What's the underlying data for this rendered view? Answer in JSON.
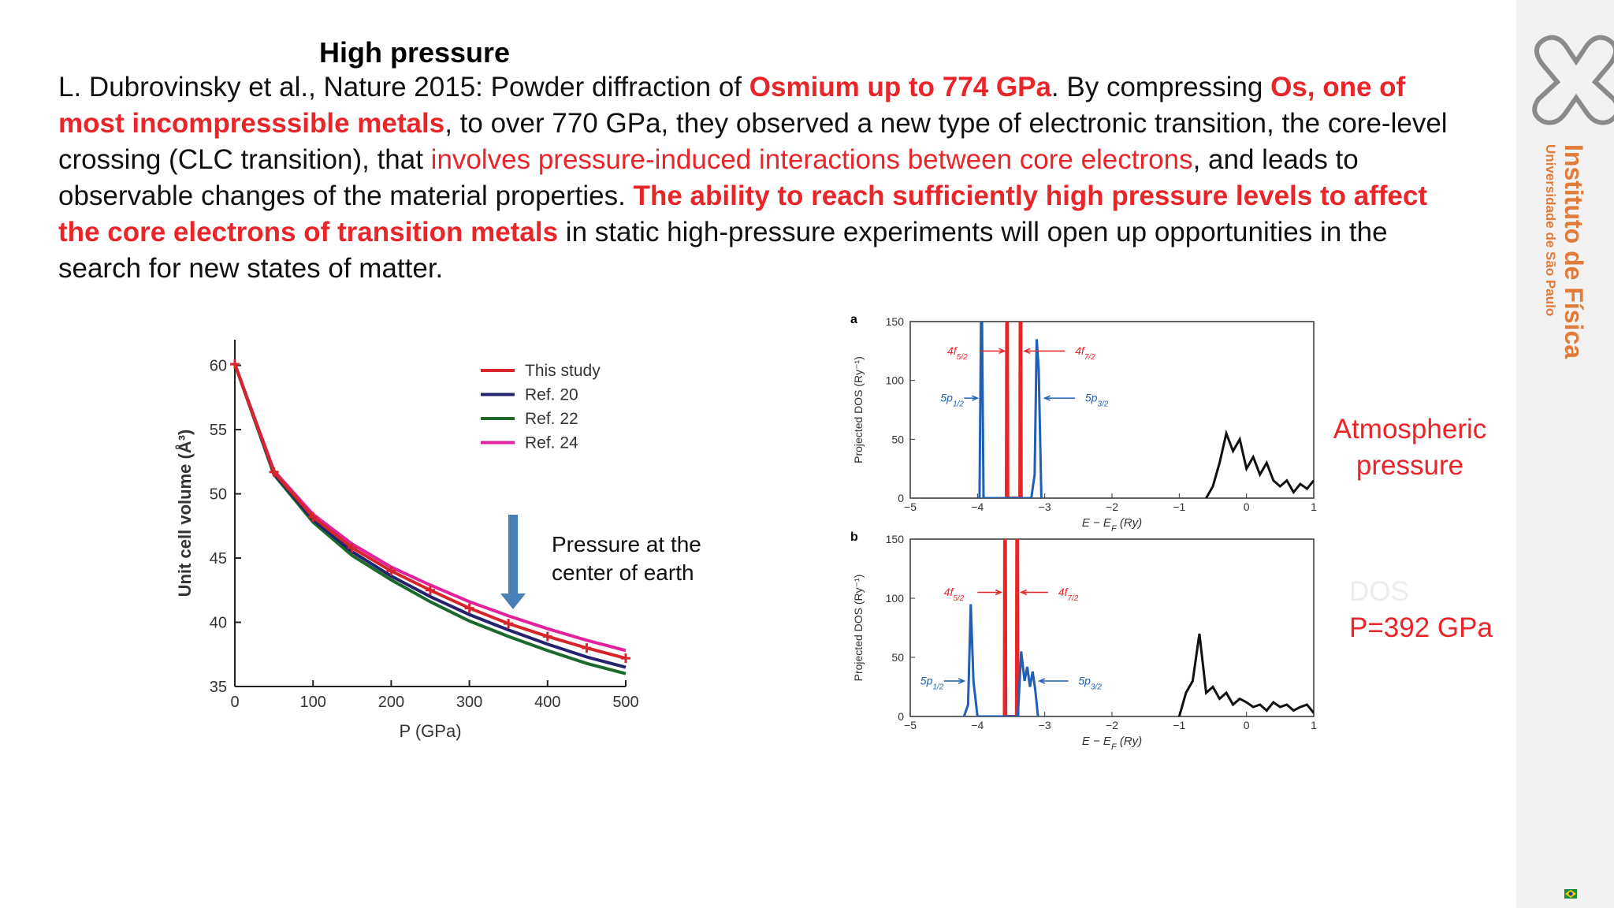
{
  "header": {
    "title": "High pressure"
  },
  "paragraph": [
    {
      "text": "L. Dubrovinsky et al., Nature 2015: Powder diffraction of ",
      "style": "normal"
    },
    {
      "text": "Osmium up to 774 GPa",
      "style": "red-bold"
    },
    {
      "text": ". By compressing ",
      "style": "normal"
    },
    {
      "text": "Os, one of most incompresssible metals",
      "style": "red-bold"
    },
    {
      "text": ", to over 770 GPa, they observed a new type of electronic transition, the core-level crossing (CLC transition), that ",
      "style": "normal"
    },
    {
      "text": "involves pressure-induced interactions between core electrons",
      "style": "red"
    },
    {
      "text": ", and leads to observable changes of the material properties. ",
      "style": "normal"
    },
    {
      "text": "The ability to reach sufficiently high pressure levels to affect the core electrons of transition metals",
      "style": "red-bold"
    },
    {
      "text": " in static high-pressure experiments will open up opportunities in the search for new states of matter.",
      "style": "normal"
    }
  ],
  "sidebar": {
    "institute": "Instituto de Física",
    "university": "Universidade de São Paulo"
  },
  "side_labels": {
    "atmospheric": [
      "Atmospheric",
      "pressure"
    ],
    "dos": "DOS",
    "pressure": "P=392 GPa"
  },
  "chart_data": [
    {
      "type": "line",
      "xlabel": "P (GPa)",
      "ylabel": "Unit cell volume (Å³)",
      "annotation": [
        "Pressure at the",
        "center of earth"
      ],
      "x": [
        0,
        50,
        100,
        150,
        200,
        250,
        300,
        350,
        400,
        450,
        500
      ],
      "series": [
        {
          "name": "This study",
          "color": "#d7262b",
          "values": [
            60.1,
            51.7,
            48.2,
            45.8,
            44.0,
            42.5,
            41.1,
            39.9,
            38.9,
            38.0,
            37.2
          ]
        },
        {
          "name": "Ref. 20",
          "color": "#23236e",
          "values": [
            60.1,
            51.6,
            48.0,
            45.5,
            43.6,
            42.0,
            40.6,
            39.4,
            38.3,
            37.3,
            36.5
          ]
        },
        {
          "name": "Ref. 22",
          "color": "#1b6a2c",
          "values": [
            60.1,
            51.5,
            47.8,
            45.2,
            43.3,
            41.6,
            40.1,
            38.9,
            37.8,
            36.8,
            36.0
          ]
        },
        {
          "name": "Ref. 24",
          "color": "#e2229c",
          "values": [
            60.1,
            51.8,
            48.4,
            46.1,
            44.3,
            42.9,
            41.6,
            40.5,
            39.5,
            38.6,
            37.8
          ]
        }
      ],
      "xlim": [
        0,
        500
      ],
      "ylim": [
        35,
        62
      ],
      "xticks": [
        0,
        100,
        200,
        300,
        400,
        500
      ],
      "yticks": [
        35,
        40,
        45,
        50,
        55,
        60
      ]
    },
    {
      "type": "dos",
      "panel_label": "a",
      "xlabel": [
        "E − E",
        "F",
        " (Ry)"
      ],
      "ylabel": "Projected DOS (Ry⁻¹)",
      "annotations": [
        {
          "base": "4f",
          "sub": "5/2"
        },
        {
          "base": "4f",
          "sub": "7/2"
        },
        {
          "base": "5p",
          "sub": "1/2"
        },
        {
          "base": "5p",
          "sub": "3/2"
        }
      ],
      "series": [
        {
          "color": "#e8262a",
          "x": [
            -3.57,
            -3.56,
            -3.55,
            -3.37,
            -3.36,
            -3.35
          ],
          "values": [
            0,
            300,
            0,
            0,
            300,
            0
          ]
        },
        {
          "color": "#1f5fb4",
          "x": [
            -4.0,
            -3.97,
            -3.94,
            -3.91,
            -3.88,
            -3.2,
            -3.15,
            -3.12,
            -3.09,
            -3.05
          ],
          "values": [
            0,
            0,
            200,
            0,
            0,
            0,
            20,
            135,
            110,
            0
          ]
        },
        {
          "color": "#111111",
          "x": [
            -0.6,
            -0.5,
            -0.4,
            -0.3,
            -0.2,
            -0.1,
            0,
            0.1,
            0.2,
            0.3,
            0.4,
            0.5,
            0.6,
            0.7,
            0.8,
            0.9,
            1.0
          ],
          "values": [
            0,
            10,
            30,
            55,
            40,
            50,
            25,
            35,
            20,
            30,
            15,
            10,
            15,
            5,
            12,
            8,
            15
          ]
        }
      ],
      "xlim": [
        -5,
        1
      ],
      "ylim": [
        0,
        150
      ],
      "xticks": [
        {
          "value": -5,
          "label": "−5"
        },
        {
          "value": -4,
          "label": "−4"
        },
        {
          "value": -3,
          "label": "−3"
        },
        {
          "value": -2,
          "label": "−2"
        },
        {
          "value": -1,
          "label": "−1"
        },
        0,
        1
      ],
      "yticks": [
        0,
        50,
        100,
        150
      ]
    },
    {
      "type": "dos",
      "panel_label": "b",
      "xlabel": [
        "E − E",
        "F",
        " (Ry)"
      ],
      "ylabel": "Projected DOS (Ry⁻¹)",
      "annotations": [
        {
          "base": "4f",
          "sub": "5/2"
        },
        {
          "base": "4f",
          "sub": "7/2"
        },
        {
          "base": "5p",
          "sub": "1/2"
        },
        {
          "base": "5p",
          "sub": "3/2"
        }
      ],
      "series": [
        {
          "color": "#e8262a",
          "x": [
            -3.6,
            -3.59,
            -3.58,
            -3.42,
            -3.41,
            -3.4
          ],
          "values": [
            0,
            300,
            0,
            0,
            300,
            0
          ]
        },
        {
          "color": "#1f5fb4",
          "x": [
            -4.2,
            -4.14,
            -4.1,
            -4.06,
            -4.0,
            -3.4,
            -3.35,
            -3.3,
            -3.26,
            -3.22,
            -3.18,
            -3.14,
            -3.1
          ],
          "values": [
            0,
            10,
            95,
            30,
            0,
            0,
            55,
            30,
            42,
            25,
            38,
            22,
            0
          ]
        },
        {
          "color": "#111111",
          "x": [
            -1.0,
            -0.9,
            -0.8,
            -0.7,
            -0.6,
            -0.5,
            -0.4,
            -0.3,
            -0.2,
            -0.1,
            0,
            0.1,
            0.2,
            0.3,
            0.4,
            0.5,
            0.6,
            0.7,
            0.8,
            0.9,
            1.0
          ],
          "values": [
            0,
            20,
            30,
            70,
            20,
            25,
            15,
            20,
            10,
            15,
            12,
            8,
            10,
            5,
            12,
            8,
            10,
            5,
            8,
            10,
            3
          ]
        }
      ],
      "xlim": [
        -5,
        1
      ],
      "ylim": [
        0,
        150
      ],
      "xticks": [
        {
          "value": -5,
          "label": "−5"
        },
        {
          "value": -4,
          "label": "−4"
        },
        {
          "value": -3,
          "label": "−3"
        },
        {
          "value": -2,
          "label": "−2"
        },
        {
          "value": -1,
          "label": "−1"
        },
        0,
        1
      ],
      "yticks": [
        0,
        50,
        100,
        150
      ]
    }
  ]
}
